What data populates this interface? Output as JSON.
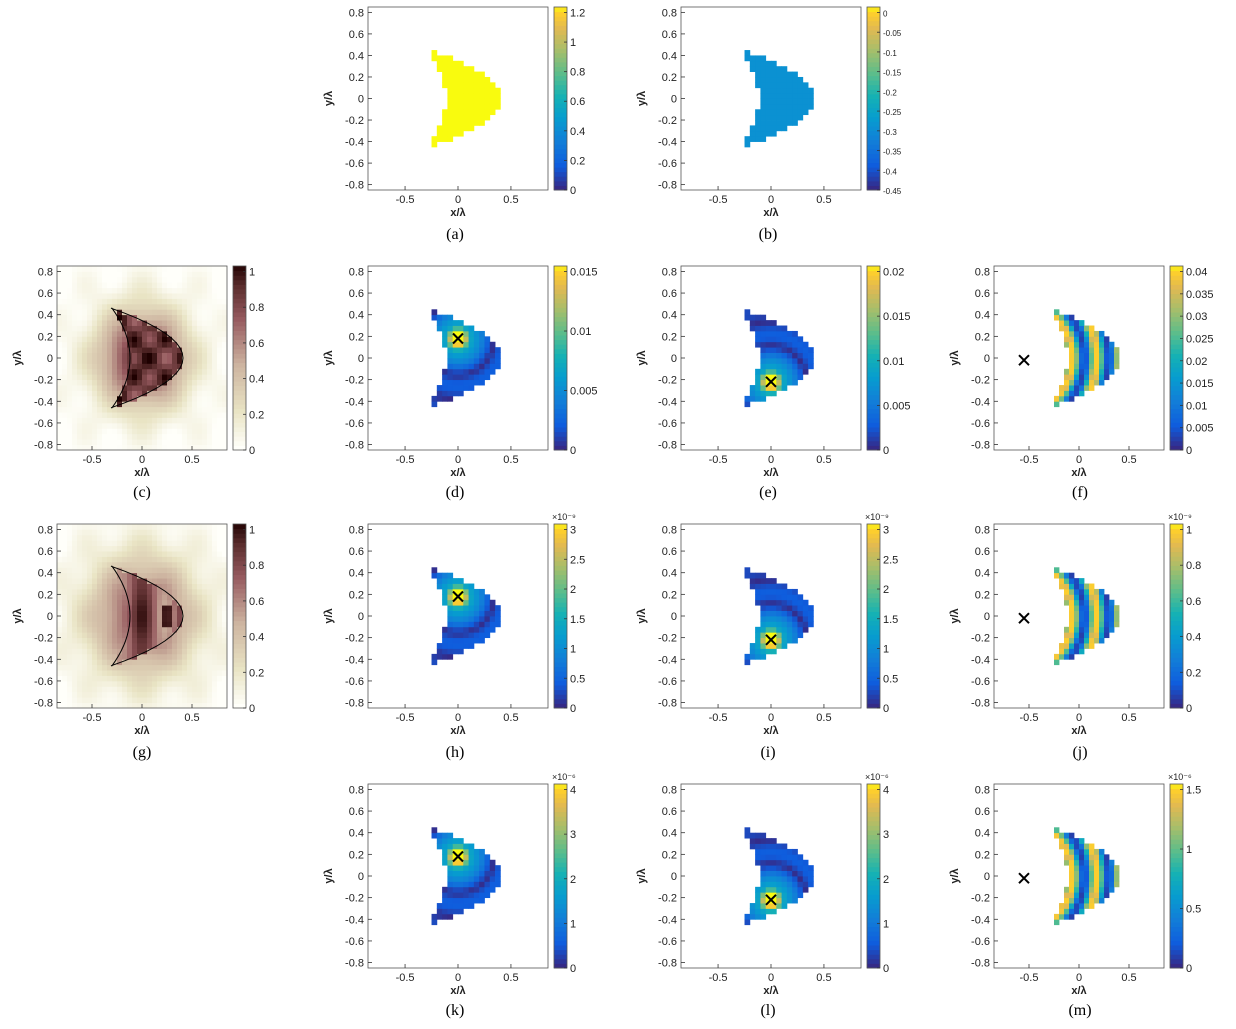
{
  "figure": {
    "common": {
      "xlabel": "x/λ",
      "ylabel": "y/λ",
      "xticks": [
        -0.5,
        0,
        0.5
      ],
      "yticks": [
        -0.8,
        -0.6,
        -0.4,
        -0.2,
        0,
        0.2,
        0.4,
        0.6,
        0.8
      ],
      "xlim": [
        -0.85,
        0.85
      ],
      "ylim": [
        -0.85,
        0.85
      ]
    },
    "panels": [
      {
        "id": "a",
        "caption": "(a)",
        "map": "uniform",
        "colormap": "parula",
        "field_value": 1.2,
        "colorbar": {
          "ticks": [
            "0",
            "0.2",
            "0.4",
            "0.6",
            "0.8",
            "1",
            "1.2"
          ],
          "exponent": ""
        },
        "marker": null
      },
      {
        "id": "b",
        "caption": "(b)",
        "map": "uniform",
        "colormap": "parula",
        "field_value": -0.3,
        "colorbar": {
          "ticks": [
            "-0.45",
            "-0.4",
            "-0.35",
            "-0.3",
            "-0.25",
            "-0.2",
            "-0.15",
            "-0.1",
            "-0.05",
            "0"
          ],
          "exponent": ""
        },
        "marker": null
      },
      {
        "id": "c",
        "caption": "(c)",
        "map": "reconstruction",
        "colormap": "pink",
        "colorbar": {
          "ticks": [
            "0",
            "0.2",
            "0.4",
            "0.6",
            "0.8",
            "1"
          ],
          "exponent": ""
        },
        "marker": null
      },
      {
        "id": "d",
        "caption": "(d)",
        "map": "hotspot",
        "colormap": "parula",
        "colorbar": {
          "ticks": [
            "0",
            "0.005",
            "0.01",
            "0.015"
          ],
          "exponent": ""
        },
        "marker": {
          "x": 0.0,
          "y": 0.18
        }
      },
      {
        "id": "e",
        "caption": "(e)",
        "map": "hotspot",
        "colormap": "parula",
        "colorbar": {
          "ticks": [
            "0",
            "0.005",
            "0.01",
            "0.015",
            "0.02"
          ],
          "exponent": ""
        },
        "marker": {
          "x": 0.0,
          "y": -0.22
        }
      },
      {
        "id": "f",
        "caption": "(f)",
        "map": "bands",
        "colormap": "parula",
        "colorbar": {
          "ticks": [
            "0",
            "0.005",
            "0.01",
            "0.015",
            "0.02",
            "0.025",
            "0.03",
            "0.035",
            "0.04"
          ],
          "exponent": ""
        },
        "marker": {
          "x": -0.55,
          "y": -0.02
        }
      },
      {
        "id": "g",
        "caption": "(g)",
        "map": "reconstruction2",
        "colormap": "pink",
        "colorbar": {
          "ticks": [
            "0",
            "0.2",
            "0.4",
            "0.6",
            "0.8",
            "1"
          ],
          "exponent": ""
        },
        "marker": null
      },
      {
        "id": "h",
        "caption": "(h)",
        "map": "hotspot",
        "colormap": "parula",
        "colorbar": {
          "ticks": [
            "0",
            "0.5",
            "1",
            "1.5",
            "2",
            "2.5",
            "3"
          ],
          "exponent": "×10⁻⁹"
        },
        "marker": {
          "x": 0.0,
          "y": 0.18
        }
      },
      {
        "id": "i",
        "caption": "(i)",
        "map": "hotspot",
        "colormap": "parula",
        "colorbar": {
          "ticks": [
            "0",
            "0.5",
            "1",
            "1.5",
            "2",
            "2.5",
            "3"
          ],
          "exponent": "×10⁻⁹"
        },
        "marker": {
          "x": 0.0,
          "y": -0.22
        }
      },
      {
        "id": "j",
        "caption": "(j)",
        "map": "bands",
        "colormap": "parula",
        "colorbar": {
          "ticks": [
            "0",
            "0.2",
            "0.4",
            "0.6",
            "0.8",
            "1"
          ],
          "exponent": "×10⁻⁹"
        },
        "marker": {
          "x": -0.55,
          "y": -0.02
        }
      },
      {
        "id": "k",
        "caption": "(k)",
        "map": "hotspot",
        "colormap": "parula",
        "colorbar": {
          "ticks": [
            "0",
            "1",
            "2",
            "3",
            "4"
          ],
          "exponent": "×10⁻⁶"
        },
        "marker": {
          "x": 0.0,
          "y": 0.18
        }
      },
      {
        "id": "l",
        "caption": "(l)",
        "map": "hotspot",
        "colormap": "parula",
        "colorbar": {
          "ticks": [
            "0",
            "1",
            "2",
            "3",
            "4"
          ],
          "exponent": "×10⁻⁶"
        },
        "marker": {
          "x": 0.0,
          "y": -0.22
        }
      },
      {
        "id": "m",
        "caption": "(m)",
        "map": "bands",
        "colormap": "parula",
        "colorbar": {
          "ticks": [
            "0",
            "0.5",
            "1",
            "1.5"
          ],
          "exponent": "×10⁻⁶"
        },
        "marker": {
          "x": -0.55,
          "y": -0.02
        }
      }
    ]
  },
  "chart_data": [
    {
      "type": "heatmap",
      "panel": "(a)",
      "description_values": {
        "inside_scatterer": 1.2,
        "outside": 0
      },
      "colorbar_range": [
        0,
        1.2
      ],
      "xlabel": "x/λ",
      "ylabel": "y/λ",
      "xlim": [
        -0.85,
        0.85
      ],
      "ylim": [
        -0.85,
        0.85
      ]
    },
    {
      "type": "heatmap",
      "panel": "(b)",
      "description_values": {
        "inside_scatterer": -0.3
      },
      "colorbar_range": [
        -0.45,
        0
      ],
      "xlabel": "x/λ",
      "ylabel": "y/λ"
    },
    {
      "type": "heatmap",
      "panel": "(c)",
      "colorbar_range": [
        0,
        1
      ],
      "xlabel": "x/λ",
      "ylabel": "y/λ"
    },
    {
      "type": "heatmap",
      "panel": "(d)",
      "colorbar_range": [
        0,
        0.019
      ],
      "marker": [
        0.0,
        0.18
      ],
      "xlabel": "x/λ",
      "ylabel": "y/λ"
    },
    {
      "type": "heatmap",
      "panel": "(e)",
      "colorbar_range": [
        0,
        0.02
      ],
      "marker": [
        0.0,
        -0.22
      ],
      "xlabel": "x/λ",
      "ylabel": "y/λ"
    },
    {
      "type": "heatmap",
      "panel": "(f)",
      "colorbar_range": [
        0,
        0.043
      ],
      "marker": [
        -0.55,
        -0.02
      ],
      "xlabel": "x/λ",
      "ylabel": "y/λ"
    },
    {
      "type": "heatmap",
      "panel": "(g)",
      "colorbar_range": [
        0,
        1
      ],
      "xlabel": "x/λ",
      "ylabel": "y/λ"
    },
    {
      "type": "heatmap",
      "panel": "(h)",
      "colorbar_range": [
        0,
        3.1e-09
      ],
      "marker": [
        0.0,
        0.18
      ],
      "xlabel": "x/λ",
      "ylabel": "y/λ"
    },
    {
      "type": "heatmap",
      "panel": "(i)",
      "colorbar_range": [
        0,
        3.1e-09
      ],
      "marker": [
        0.0,
        -0.22
      ],
      "xlabel": "x/λ",
      "ylabel": "y/λ"
    },
    {
      "type": "heatmap",
      "panel": "(j)",
      "colorbar_range": [
        0,
        1.15e-09
      ],
      "marker": [
        -0.55,
        -0.02
      ],
      "xlabel": "x/λ",
      "ylabel": "y/λ"
    },
    {
      "type": "heatmap",
      "panel": "(k)",
      "colorbar_range": [
        0,
        4.7e-06
      ],
      "marker": [
        0.0,
        0.18
      ],
      "xlabel": "x/λ",
      "ylabel": "y/λ"
    },
    {
      "type": "heatmap",
      "panel": "(l)",
      "colorbar_range": [
        0,
        4.7e-06
      ],
      "marker": [
        0.0,
        -0.22
      ],
      "xlabel": "x/λ",
      "ylabel": "y/λ"
    },
    {
      "type": "heatmap",
      "panel": "(m)",
      "colorbar_range": [
        0,
        1.8e-06
      ],
      "marker": [
        -0.55,
        -0.02
      ],
      "xlabel": "x/λ",
      "ylabel": "y/λ"
    }
  ]
}
